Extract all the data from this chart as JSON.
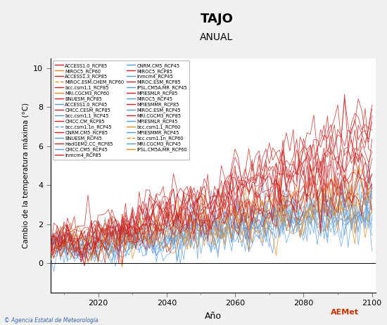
{
  "title": "TAJO",
  "subtitle": "ANUAL",
  "xlabel": "Año",
  "ylabel": "Cambio de la temperatura máxima (°C)",
  "xlim": [
    2006,
    2101
  ],
  "ylim": [
    -1.5,
    10.5
  ],
  "yticks": [
    0,
    2,
    4,
    6,
    8,
    10
  ],
  "xticks": [
    2020,
    2040,
    2060,
    2080,
    2100
  ],
  "bg_color": "#f0f0f0",
  "plot_bg_color": "#ffffff",
  "footer_text": "© Agencia Estatal de Meteorología",
  "rcp85_color": "#cc2222",
  "rcp60_color": "#e8881a",
  "rcp45_color": "#5599dd",
  "n_rcp85": 14,
  "n_rcp60": 6,
  "n_rcp45": 13,
  "legend_left": [
    [
      "ACCESS1.0_RCP85",
      "#cc2222"
    ],
    [
      "ACCESS1.3_RCP85",
      "#cc2222"
    ],
    [
      "bcc.csm1.1_RCP85",
      "#cc2222"
    ],
    [
      "BNUESM_RCP85",
      "#cc2222"
    ],
    [
      "CMCC.CESM_RCP85",
      "#cc2222"
    ],
    [
      "CMCC.CM_RCP85",
      "#cc2222"
    ],
    [
      "CNRM.CM5_RCP85",
      "#cc2222"
    ],
    [
      "HadGEM2.CC_RCP85",
      "#cc2222"
    ],
    [
      "Inmcm4_RCP85",
      "#cc2222"
    ],
    [
      "MIROC5_RCP85",
      "#cc2222"
    ],
    [
      "MIROC.ESM_RCP85",
      "#cc2222"
    ],
    [
      "MPIESMLR_RCP85",
      "#cc2222"
    ],
    [
      "MPIESMMR_RCP85",
      "#cc2222"
    ],
    [
      "MRI.CGCM3_RCP85",
      "#cc2222"
    ],
    [
      "bcc.csm1.1_RCP60",
      "#e8881a"
    ],
    [
      "bcc.csm1.1n_RCP60",
      "#e8881a"
    ],
    [
      "IPSL.CM5A.MR_RCP60",
      "#e8881a"
    ]
  ],
  "legend_right": [
    [
      "MIROC5_RCP60",
      "#e8881a"
    ],
    [
      "MIROC.ESM.CHEM_RCP60",
      "#e8881a"
    ],
    [
      "MRI.CGCM3_RCP60",
      "#e8881a"
    ],
    [
      "ACCESS1.0_RCP45",
      "#5599dd"
    ],
    [
      "bcc.csm1.1_RCP45",
      "#5599dd"
    ],
    [
      "bcc.csm1.1n_RCP45",
      "#5599dd"
    ],
    [
      "BNUESM_RCP45",
      "#5599dd"
    ],
    [
      "CMCC.CM5_RCP45",
      "#5599dd"
    ],
    [
      "CNRM.CM5_RCP45",
      "#5599dd"
    ],
    [
      "Inmcm4_RCP45",
      "#5599dd"
    ],
    [
      "IPSL.CM5A.MR_RCP45",
      "#5599dd"
    ],
    [
      "MIROC5_RCP45",
      "#5599dd"
    ],
    [
      "MIROC.ESM_RCP45",
      "#5599dd"
    ],
    [
      "MPIESMLR_RCP45",
      "#5599dd"
    ],
    [
      "MPIESMMR_RCP45",
      "#5599dd"
    ],
    [
      "MRI.CGCM3_RCP45",
      "#5599dd"
    ]
  ]
}
